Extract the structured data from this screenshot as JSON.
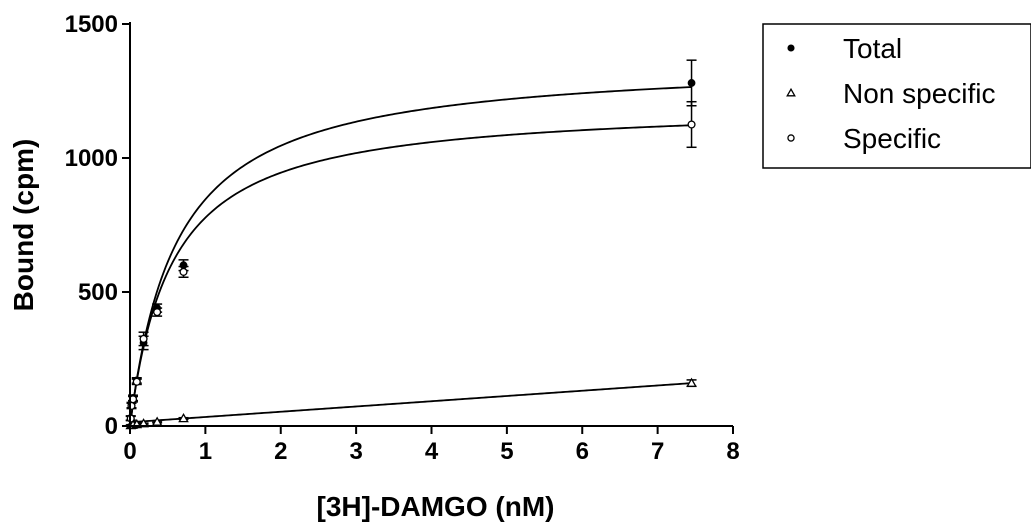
{
  "chart_data": {
    "type": "scatter",
    "title": "",
    "xlabel": "[3H]-DAMGO (nM)",
    "ylabel": "Bound (cpm)",
    "xlim": [
      0,
      8
    ],
    "ylim": [
      0,
      1500
    ],
    "x_ticks": [
      0,
      1,
      2,
      3,
      4,
      5,
      6,
      7,
      8
    ],
    "y_ticks": [
      0,
      500,
      1000,
      1500
    ],
    "grid": false,
    "legend_position": "top-right",
    "series": [
      {
        "name": "Total",
        "marker": "filled-circle",
        "points": [
          {
            "x": 0.01,
            "y": 30,
            "err": 8
          },
          {
            "x": 0.02,
            "y": 78,
            "err": 10
          },
          {
            "x": 0.04,
            "y": 105,
            "err": 10
          },
          {
            "x": 0.09,
            "y": 170,
            "err": 10
          },
          {
            "x": 0.18,
            "y": 310,
            "err": 25
          },
          {
            "x": 0.36,
            "y": 440,
            "err": 15
          },
          {
            "x": 0.71,
            "y": 600,
            "err": 20
          },
          {
            "x": 7.45,
            "y": 1280,
            "err": 85
          }
        ],
        "fit": {
          "model": "one-site",
          "bmax": 1370,
          "kd": 0.62
        }
      },
      {
        "name": "Non specific",
        "marker": "open-triangle",
        "points": [
          {
            "x": 0.01,
            "y": 2,
            "err": 2
          },
          {
            "x": 0.02,
            "y": 3,
            "err": 2
          },
          {
            "x": 0.04,
            "y": 4,
            "err": 2
          },
          {
            "x": 0.09,
            "y": 6,
            "err": 2
          },
          {
            "x": 0.18,
            "y": 9,
            "err": 2
          },
          {
            "x": 0.36,
            "y": 15,
            "err": 3
          },
          {
            "x": 0.71,
            "y": 28,
            "err": 3
          },
          {
            "x": 7.45,
            "y": 160,
            "err": 12
          }
        ],
        "fit": {
          "model": "linear",
          "slope": 19.6,
          "intercept": 14
        }
      },
      {
        "name": "Specific",
        "marker": "open-circle",
        "points": [
          {
            "x": 0.01,
            "y": 28,
            "err": 8
          },
          {
            "x": 0.02,
            "y": 75,
            "err": 10
          },
          {
            "x": 0.04,
            "y": 100,
            "err": 10
          },
          {
            "x": 0.09,
            "y": 165,
            "err": 10
          },
          {
            "x": 0.18,
            "y": 325,
            "err": 25
          },
          {
            "x": 0.36,
            "y": 425,
            "err": 15
          },
          {
            "x": 0.71,
            "y": 575,
            "err": 20
          },
          {
            "x": 7.45,
            "y": 1125,
            "err": 85
          }
        ],
        "fit": {
          "model": "one-site",
          "bmax": 1205,
          "kd": 0.55
        }
      }
    ]
  }
}
